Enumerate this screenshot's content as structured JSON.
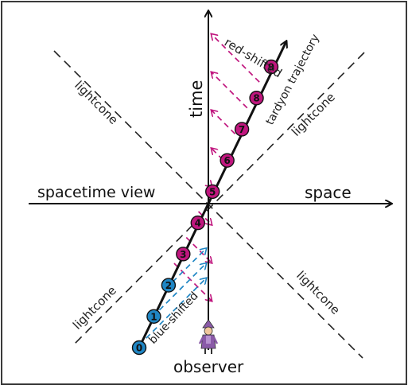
{
  "labels": {
    "time": "time",
    "space": "space",
    "view": "spacetime view",
    "observer": "observer",
    "red_shifted": "red-shifted",
    "blue_shifted": "blue-shifted",
    "trajectory": "tardyon trajectory",
    "lightcone_ul": "lightcone",
    "lightcone_ur": "lightcone",
    "lightcone_ll": "lightcone",
    "lightcone_lr": "lightcone"
  },
  "blue_points": [
    "0",
    "1",
    "2"
  ],
  "red_points": [
    "3",
    "4",
    "5",
    "6",
    "7",
    "8",
    "9"
  ],
  "colors": {
    "blue": "#1f86c4",
    "red": "#c0167e",
    "axis": "#222222",
    "frame": "#3a3a3a"
  },
  "icons": {
    "observer": "observer-figure-icon"
  }
}
